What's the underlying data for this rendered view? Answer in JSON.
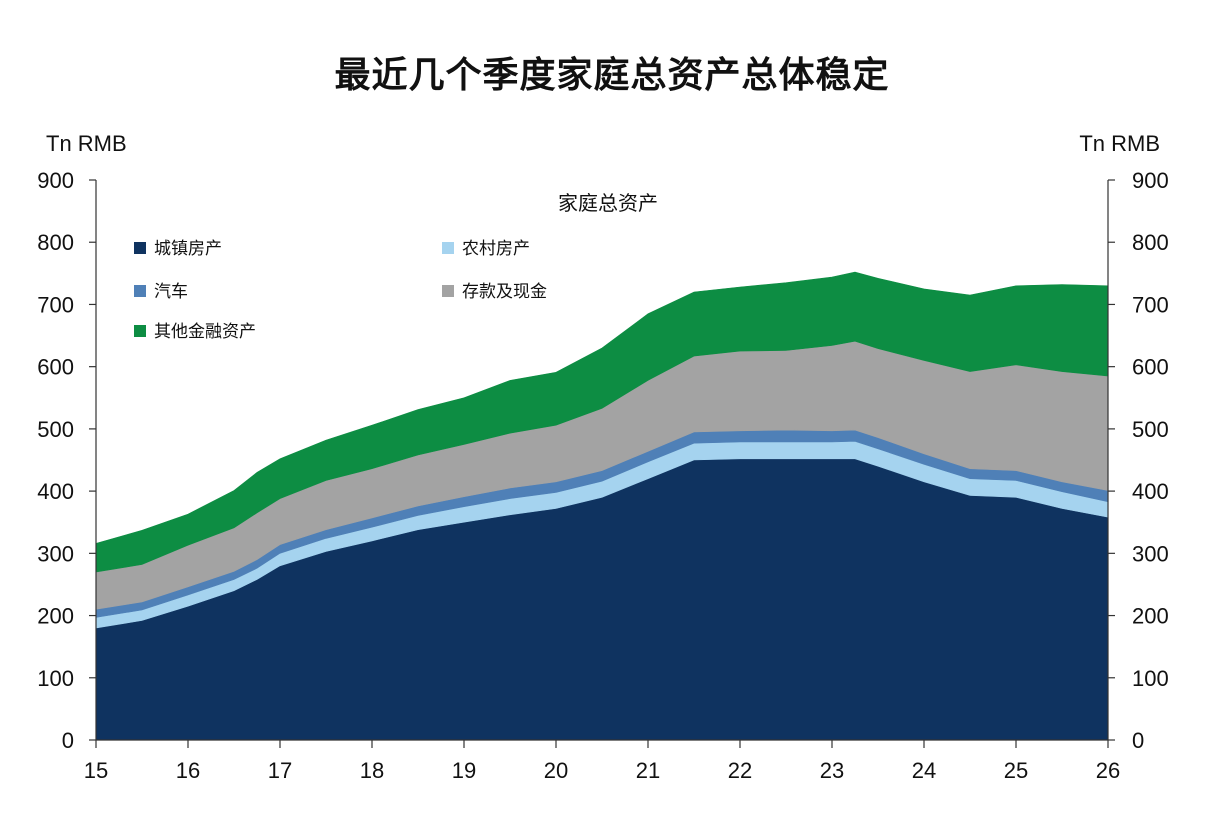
{
  "title": "最近几个季度家庭总资产总体稳定",
  "chart_data": {
    "type": "area",
    "stacked": true,
    "title": "家庭总资产",
    "ylabel_left": "Tn RMB",
    "ylabel_right": "Tn RMB",
    "ylim": [
      0,
      900
    ],
    "yticks": [
      0,
      100,
      200,
      300,
      400,
      500,
      600,
      700,
      800,
      900
    ],
    "xlim": [
      15,
      26
    ],
    "xticks": [
      "15",
      "16",
      "17",
      "18",
      "19",
      "20",
      "21",
      "22",
      "23",
      "24",
      "25",
      "26"
    ],
    "x": [
      15,
      15.5,
      16,
      16.5,
      16.75,
      17,
      17.5,
      18,
      18.5,
      19,
      19.5,
      20,
      20.5,
      21,
      21.5,
      22,
      22.5,
      23,
      23.25,
      23.5,
      24,
      24.5,
      25,
      25.5,
      26
    ],
    "legend_position": "top-left",
    "series": [
      {
        "name": "城镇房产",
        "color": "#0f3360",
        "values": [
          180,
          192,
          215,
          240,
          258,
          280,
          303,
          320,
          338,
          350,
          362,
          372,
          390,
          420,
          450,
          452,
          452,
          452,
          452,
          440,
          415,
          393,
          390,
          372,
          358
        ]
      },
      {
        "name": "农村房产",
        "color": "#a5d3ef",
        "values": [
          17,
          17,
          18,
          18,
          18,
          20,
          21,
          22,
          23,
          25,
          26,
          26,
          26,
          27,
          27,
          27,
          27,
          27,
          28,
          28,
          28,
          27,
          27,
          27,
          25
        ]
      },
      {
        "name": "汽车",
        "color": "#4f80b7",
        "values": [
          13,
          13,
          13,
          13,
          14,
          14,
          14,
          15,
          15,
          16,
          17,
          17,
          17,
          17,
          18,
          18,
          19,
          18,
          18,
          18,
          17,
          16,
          16,
          16,
          18
        ]
      },
      {
        "name": "存款及现金",
        "color": "#a3a3a3",
        "values": [
          60,
          60,
          67,
          70,
          75,
          74,
          79,
          79,
          82,
          84,
          88,
          91,
          100,
          114,
          122,
          128,
          128,
          137,
          143,
          143,
          150,
          156,
          170,
          177,
          184
        ]
      },
      {
        "name": "其他金融资产",
        "color": "#0d8d43",
        "values": [
          46,
          55,
          50,
          60,
          65,
          64,
          65,
          70,
          73,
          75,
          85,
          85,
          97,
          107,
          103,
          103,
          109,
          110,
          111,
          113,
          115,
          123,
          127,
          140,
          145
        ]
      }
    ]
  }
}
